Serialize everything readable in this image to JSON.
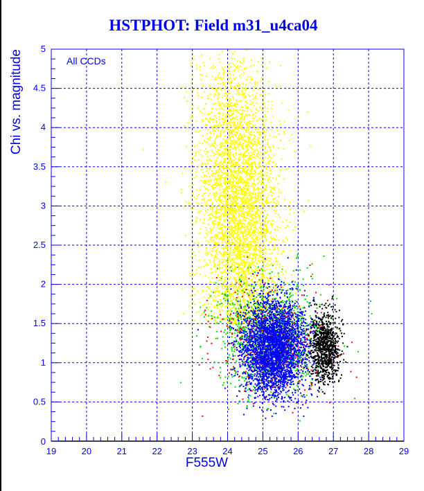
{
  "chart_data": {
    "type": "scatter",
    "title": "HSTPHOT: Field m31_u4ca04",
    "xlabel": "F555W",
    "ylabel": "Chi vs. magnitude",
    "annotation": "All CCDs",
    "xlim": [
      19,
      29
    ],
    "ylim": [
      0,
      5
    ],
    "xticks": [
      "19",
      "20",
      "21",
      "22",
      "23",
      "24",
      "25",
      "26",
      "27",
      "28",
      "29"
    ],
    "yticks": [
      "0",
      "0.5",
      "1",
      "1.5",
      "2",
      "2.5",
      "3",
      "3.5",
      "4",
      "4.5",
      "5"
    ],
    "grid": true,
    "legend": "none",
    "series": [
      {
        "name": "yellow",
        "color": "#ffff00",
        "count": 4200,
        "x_mean": 24.3,
        "x_sd": 0.55,
        "y_mean": 3.0,
        "y_sd": 0.95
      },
      {
        "name": "green",
        "color": "#00dd00",
        "count": 1200,
        "x_mean": 25.2,
        "x_sd": 0.75,
        "y_mean": 1.35,
        "y_sd": 0.35
      },
      {
        "name": "red",
        "color": "#ff0000",
        "count": 350,
        "x_mean": 25.2,
        "x_sd": 0.85,
        "y_mean": 1.3,
        "y_sd": 0.35
      },
      {
        "name": "blue",
        "color": "#0000ff",
        "count": 3200,
        "x_mean": 25.3,
        "x_sd": 0.45,
        "y_mean": 1.2,
        "y_sd": 0.3
      },
      {
        "name": "black",
        "color": "#000000",
        "count": 900,
        "x_mean": 26.75,
        "x_sd": 0.2,
        "y_mean": 1.2,
        "y_sd": 0.22
      }
    ]
  }
}
